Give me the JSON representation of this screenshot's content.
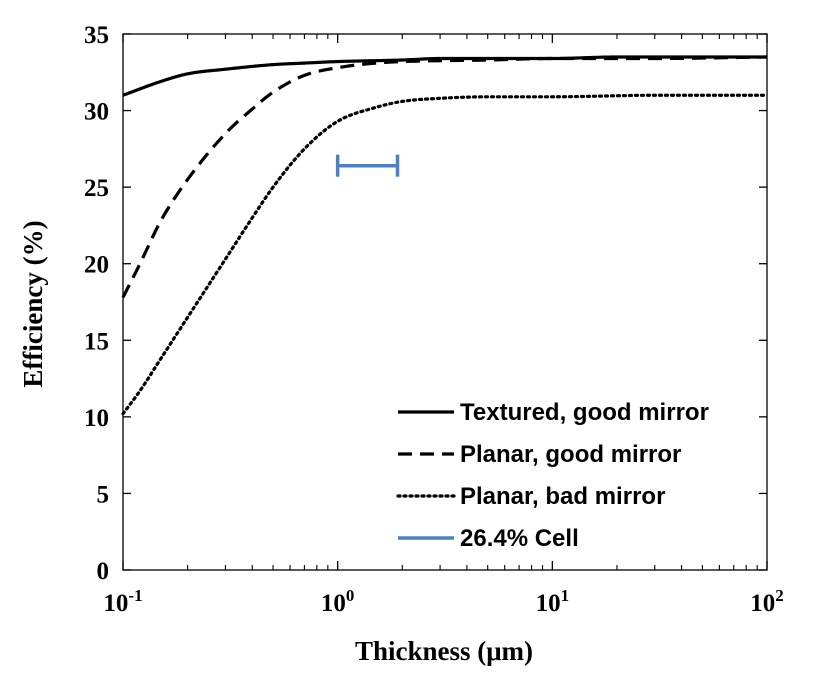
{
  "chart_data": {
    "type": "line",
    "xscale": "log",
    "xlim": [
      0.1,
      100
    ],
    "ylim": [
      0,
      35
    ],
    "xlabel": "Thickness (μm)",
    "ylabel": "Efficiency (%)",
    "x_ticks": [
      {
        "value": 0.1,
        "base": "10",
        "exp": "-1"
      },
      {
        "value": 1,
        "base": "10",
        "exp": "0"
      },
      {
        "value": 10,
        "base": "10",
        "exp": "1"
      },
      {
        "value": 100,
        "base": "10",
        "exp": "2"
      }
    ],
    "y_ticks": [
      "0",
      "5",
      "10",
      "15",
      "20",
      "25",
      "30",
      "35"
    ],
    "grid": false,
    "legend_position": "bottom-right",
    "series": [
      {
        "name": "Textured, good mirror",
        "style": "solid",
        "color": "#000000",
        "points": [
          [
            0.1,
            31.0
          ],
          [
            0.15,
            31.9
          ],
          [
            0.2,
            32.4
          ],
          [
            0.3,
            32.7
          ],
          [
            0.5,
            33.0
          ],
          [
            0.7,
            33.1
          ],
          [
            1,
            33.2
          ],
          [
            2,
            33.3
          ],
          [
            3,
            33.4
          ],
          [
            5,
            33.4
          ],
          [
            10,
            33.4
          ],
          [
            20,
            33.5
          ],
          [
            50,
            33.5
          ],
          [
            100,
            33.5
          ]
        ]
      },
      {
        "name": "Planar, good mirror",
        "style": "dashed",
        "color": "#000000",
        "points": [
          [
            0.1,
            17.8
          ],
          [
            0.12,
            20.0
          ],
          [
            0.15,
            22.8
          ],
          [
            0.2,
            25.5
          ],
          [
            0.3,
            28.5
          ],
          [
            0.4,
            30.1
          ],
          [
            0.5,
            31.2
          ],
          [
            0.7,
            32.3
          ],
          [
            1,
            32.8
          ],
          [
            1.5,
            33.1
          ],
          [
            2,
            33.2
          ],
          [
            5,
            33.3
          ],
          [
            10,
            33.4
          ],
          [
            30,
            33.4
          ],
          [
            100,
            33.5
          ]
        ]
      },
      {
        "name": "Planar, bad mirror",
        "style": "dotted",
        "color": "#000000",
        "points": [
          [
            0.1,
            10.2
          ],
          [
            0.12,
            11.7
          ],
          [
            0.15,
            13.8
          ],
          [
            0.2,
            16.5
          ],
          [
            0.3,
            20.3
          ],
          [
            0.4,
            23.0
          ],
          [
            0.5,
            25.0
          ],
          [
            0.7,
            27.5
          ],
          [
            1,
            29.3
          ],
          [
            1.5,
            30.2
          ],
          [
            2,
            30.6
          ],
          [
            3,
            30.8
          ],
          [
            5,
            30.9
          ],
          [
            10,
            30.9
          ],
          [
            30,
            31.0
          ],
          [
            100,
            31.0
          ]
        ]
      }
    ],
    "cell": {
      "name": "26.4% Cell",
      "color": "#4f81bd",
      "x_range": [
        1.0,
        1.9
      ],
      "y": 26.4
    }
  }
}
